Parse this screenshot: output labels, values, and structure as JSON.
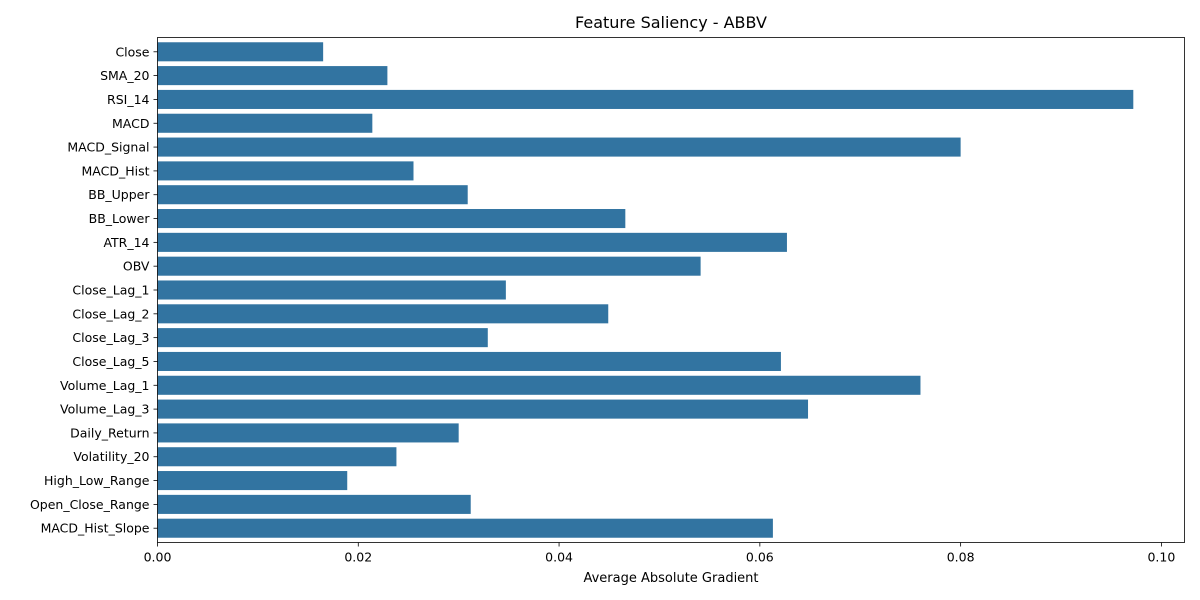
{
  "chart_data": {
    "type": "bar",
    "orientation": "horizontal",
    "title": "Feature Saliency - ABBV",
    "xlabel": "Average Absolute Gradient",
    "ylabel": "",
    "xlim": [
      0,
      0.1023
    ],
    "xticks": [
      0,
      0.02,
      0.04,
      0.06,
      0.08,
      0.1
    ],
    "xtick_labels": [
      "0.00",
      "0.02",
      "0.04",
      "0.06",
      "0.08",
      "0.10"
    ],
    "grid": false,
    "bar_color": "#3274a1",
    "categories": [
      "Close",
      "SMA_20",
      "RSI_14",
      "MACD",
      "MACD_Signal",
      "MACD_Hist",
      "BB_Upper",
      "BB_Lower",
      "ATR_14",
      "OBV",
      "Close_Lag_1",
      "Close_Lag_2",
      "Close_Lag_3",
      "Close_Lag_5",
      "Volume_Lag_1",
      "Volume_Lag_3",
      "Daily_Return",
      "Volatility_20",
      "High_Low_Range",
      "Open_Close_Range",
      "MACD_Hist_Slope"
    ],
    "values": [
      0.0165,
      0.0229,
      0.0972,
      0.0214,
      0.08,
      0.0255,
      0.0309,
      0.0466,
      0.0627,
      0.0541,
      0.0347,
      0.0449,
      0.0329,
      0.0621,
      0.076,
      0.0648,
      0.03,
      0.0238,
      0.0189,
      0.0312,
      0.0613
    ]
  }
}
